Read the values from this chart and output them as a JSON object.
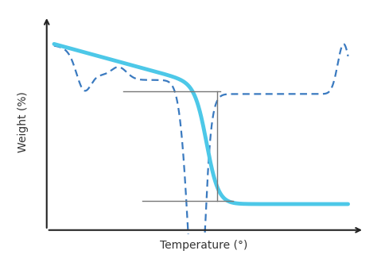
{
  "background_color": "#ffffff",
  "solid_color": "#4DC8E8",
  "dashed_color": "#3A7AC0",
  "annotation_color": "#777777",
  "ylabel": "Weight (%)",
  "xlabel": "Temperature (°)",
  "xlabel_fontsize": 10,
  "ylabel_fontsize": 10,
  "axis_color": "#222222",
  "solid_lw": 3.5,
  "dashed_lw": 1.6
}
